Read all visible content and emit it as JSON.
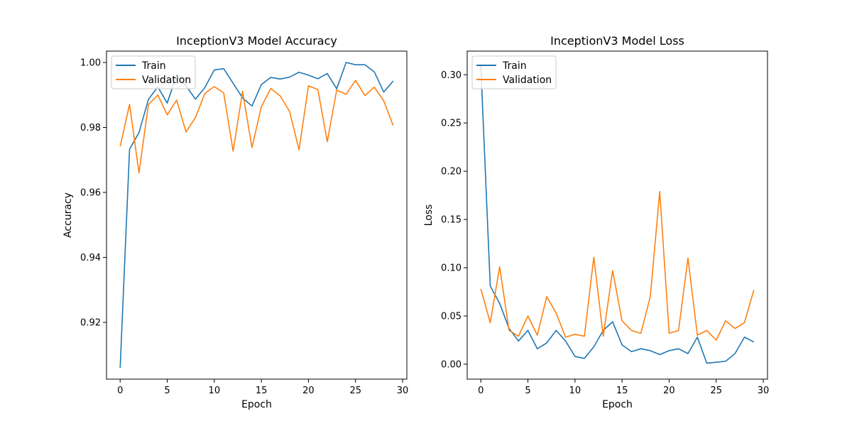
{
  "colors": {
    "train": "#1f77b4",
    "validation": "#ff7f0e"
  },
  "chart_data": [
    {
      "type": "line",
      "title": "InceptionV3 Model Accuracy",
      "xlabel": "Epoch",
      "ylabel": "Accuracy",
      "xlim": [
        -1.45,
        30.45
      ],
      "ylim": [
        0.9025,
        1.0035
      ],
      "xticks": [
        0,
        5,
        10,
        15,
        20,
        25,
        30
      ],
      "yticks": [
        0.92,
        0.94,
        0.96,
        0.98,
        1.0
      ],
      "ytick_labels": [
        "0.92",
        "0.94",
        "0.96",
        "0.98",
        "1.00"
      ],
      "legend": "top-left",
      "x": [
        0,
        1,
        2,
        3,
        4,
        5,
        6,
        7,
        8,
        9,
        10,
        11,
        12,
        13,
        14,
        15,
        16,
        17,
        18,
        19,
        20,
        21,
        22,
        23,
        24,
        25,
        26,
        27,
        28,
        29
      ],
      "series": [
        {
          "name": "Train",
          "values": [
            0.906,
            0.9733,
            0.9784,
            0.9886,
            0.9925,
            0.9875,
            0.9962,
            0.9928,
            0.9887,
            0.9923,
            0.9977,
            0.9981,
            0.9936,
            0.9891,
            0.9866,
            0.9932,
            0.9954,
            0.9949,
            0.9955,
            0.997,
            0.9961,
            0.995,
            0.9966,
            0.9919,
            1.0,
            0.9993,
            0.9993,
            0.9971,
            0.9909,
            0.9943
          ]
        },
        {
          "name": "Validation",
          "values": [
            0.9741,
            0.9871,
            0.966,
            0.987,
            0.99,
            0.9839,
            0.9884,
            0.9786,
            0.9831,
            0.9905,
            0.9926,
            0.9906,
            0.9727,
            0.9911,
            0.9738,
            0.9864,
            0.992,
            0.9897,
            0.9849,
            0.9731,
            0.9928,
            0.9917,
            0.9756,
            0.9915,
            0.9902,
            0.9945,
            0.9898,
            0.9924,
            0.9882,
            0.9806
          ]
        }
      ]
    },
    {
      "type": "line",
      "title": "InceptionV3 Model Loss",
      "xlabel": "Epoch",
      "ylabel": "Loss",
      "xlim": [
        -1.45,
        30.45
      ],
      "ylim": [
        -0.0155,
        0.3245
      ],
      "xticks": [
        0,
        5,
        10,
        15,
        20,
        25,
        30
      ],
      "yticks": [
        0.0,
        0.05,
        0.1,
        0.15,
        0.2,
        0.25,
        0.3
      ],
      "ytick_labels": [
        "0.00",
        "0.05",
        "0.10",
        "0.15",
        "0.20",
        "0.25",
        "0.30"
      ],
      "legend": "top-left",
      "x": [
        0,
        1,
        2,
        3,
        4,
        5,
        6,
        7,
        8,
        9,
        10,
        11,
        12,
        13,
        14,
        15,
        16,
        17,
        18,
        19,
        20,
        21,
        22,
        23,
        24,
        25,
        26,
        27,
        28,
        29
      ],
      "series": [
        {
          "name": "Train",
          "values": [
            0.309,
            0.081,
            0.063,
            0.037,
            0.024,
            0.035,
            0.016,
            0.022,
            0.035,
            0.024,
            0.008,
            0.006,
            0.018,
            0.035,
            0.044,
            0.02,
            0.013,
            0.016,
            0.014,
            0.01,
            0.014,
            0.016,
            0.011,
            0.028,
            0.001,
            0.002,
            0.003,
            0.011,
            0.028,
            0.023
          ]
        },
        {
          "name": "Validation",
          "values": [
            0.078,
            0.043,
            0.101,
            0.035,
            0.029,
            0.05,
            0.03,
            0.07,
            0.053,
            0.028,
            0.031,
            0.029,
            0.111,
            0.029,
            0.097,
            0.045,
            0.035,
            0.032,
            0.07,
            0.179,
            0.032,
            0.035,
            0.11,
            0.03,
            0.035,
            0.025,
            0.045,
            0.037,
            0.043,
            0.077
          ]
        }
      ]
    }
  ]
}
